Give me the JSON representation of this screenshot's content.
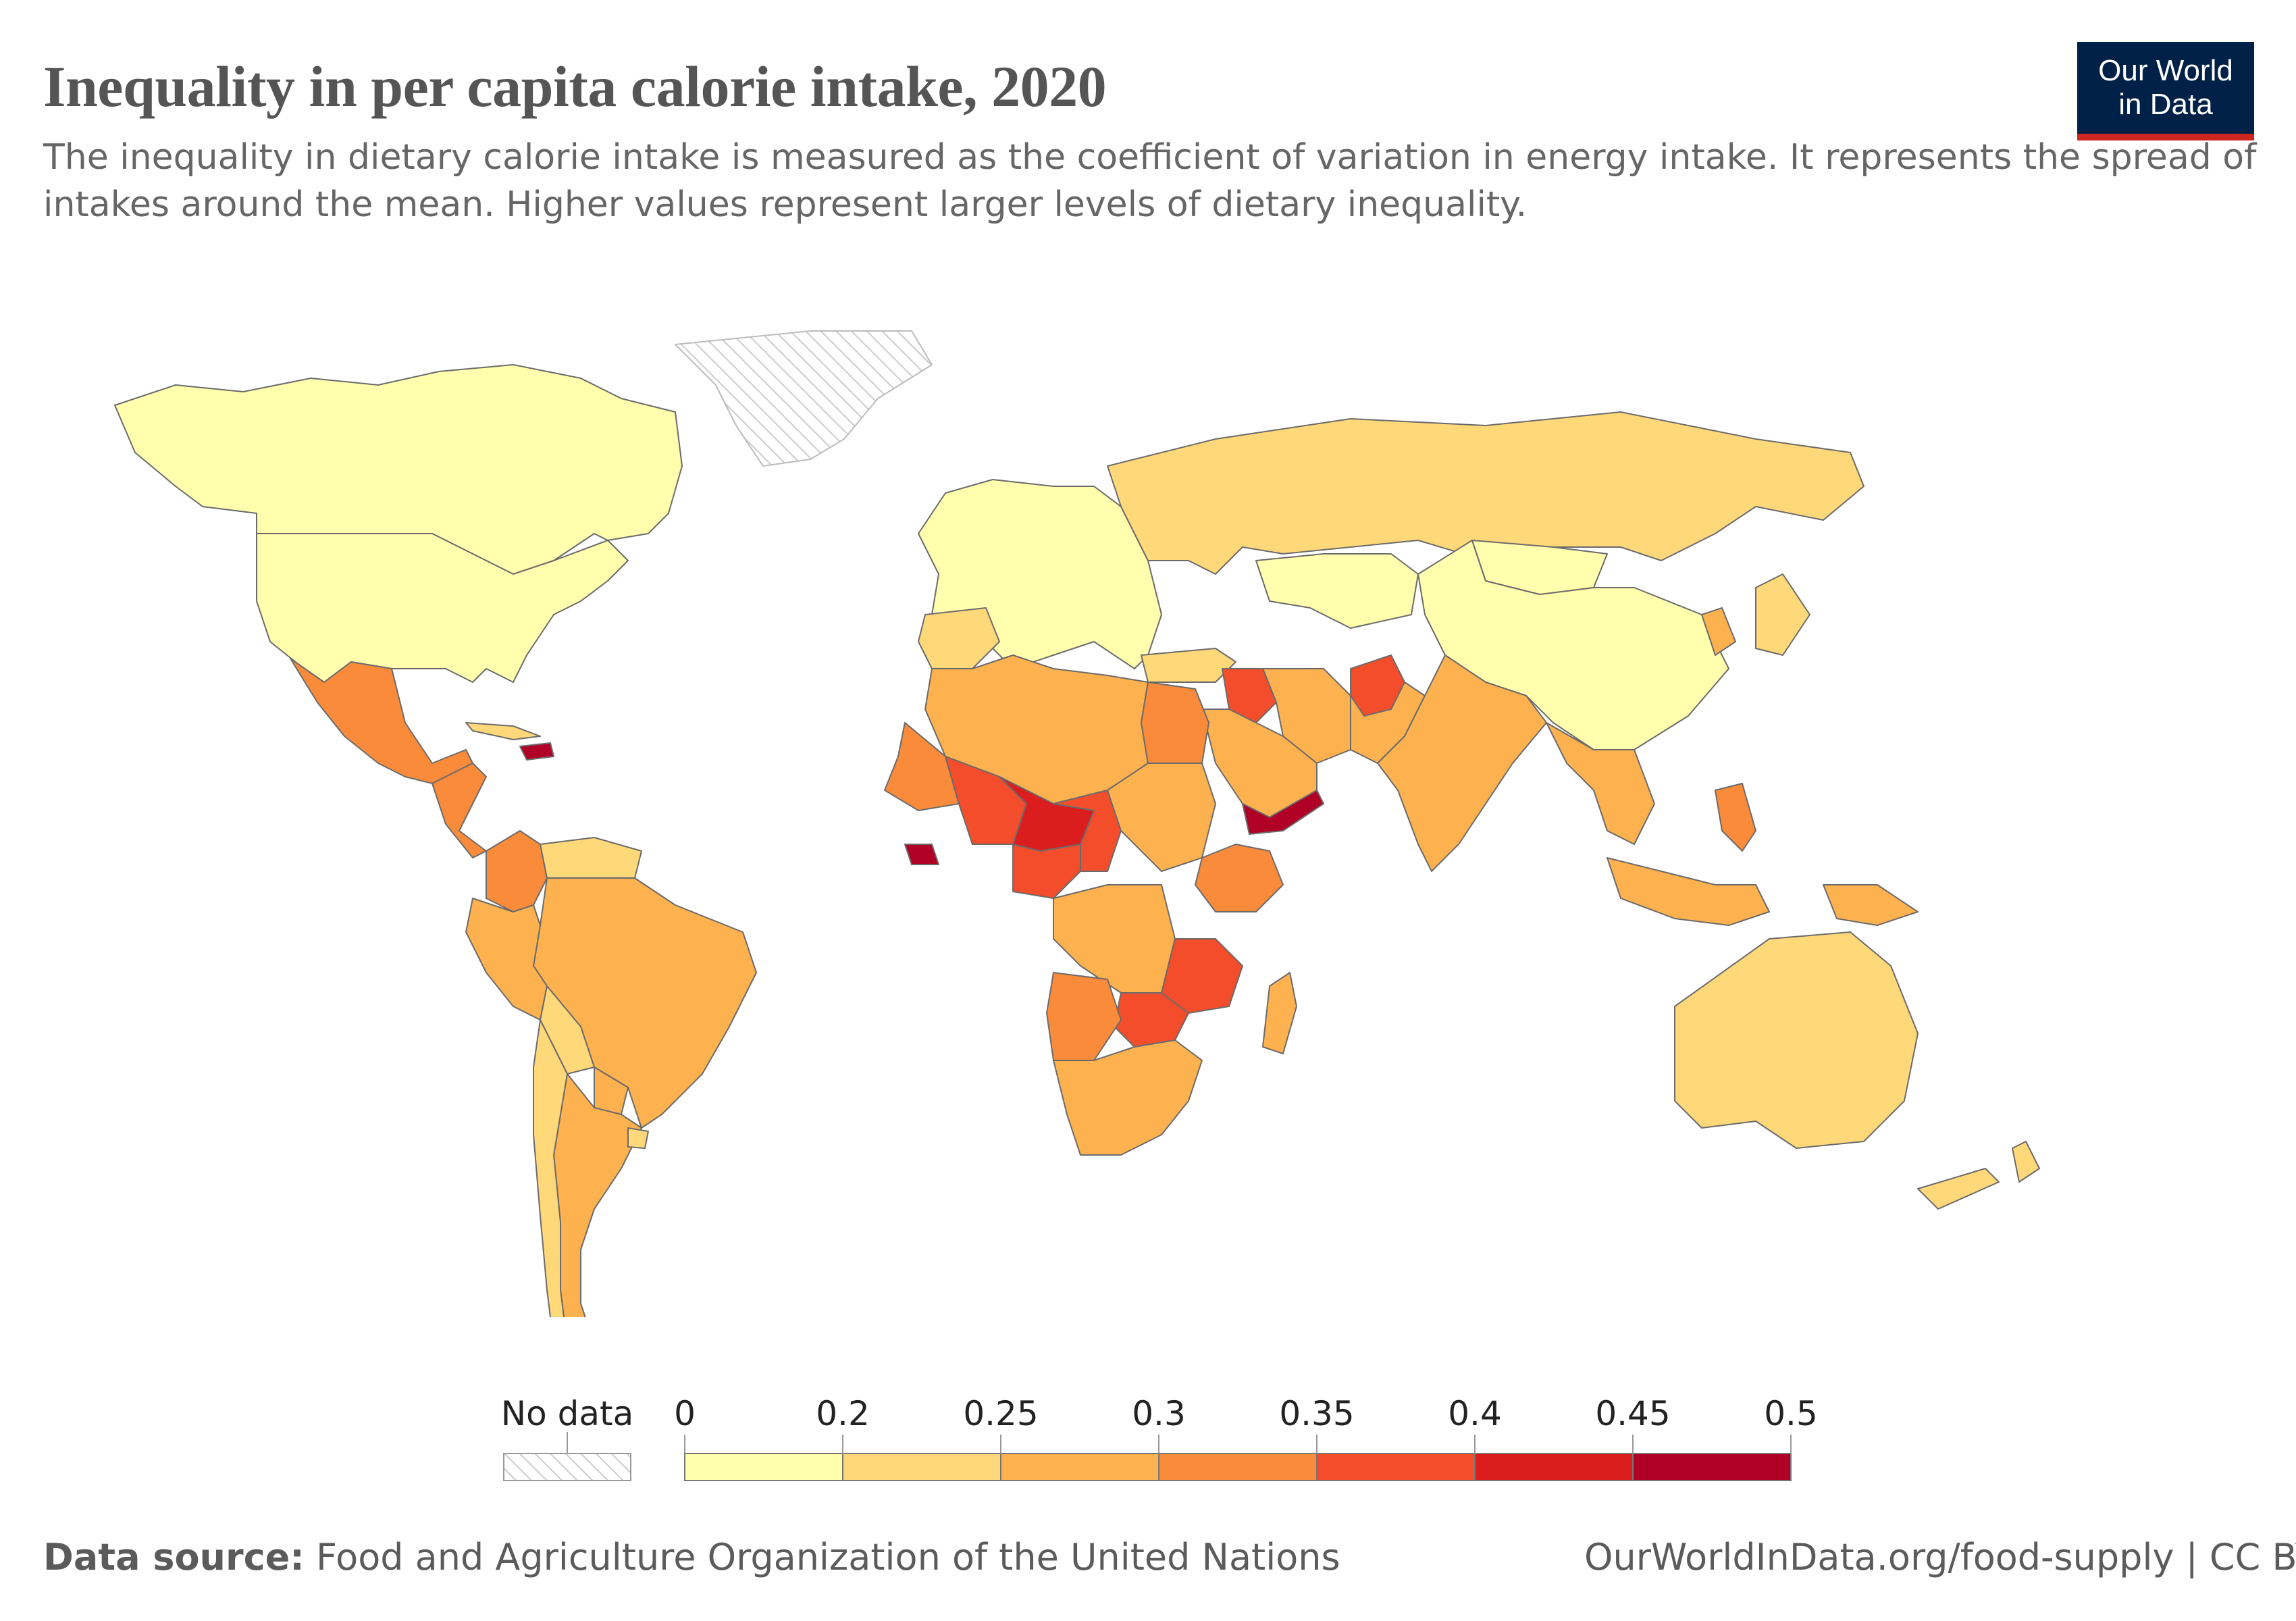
{
  "header": {
    "title": "Inequality in per capita calorie intake, 2020",
    "subtitle": "The inequality in dietary calorie intake is measured as the coefficient of variation in energy intake. It represents the spread of intakes around the mean. Higher values represent larger levels of dietary inequality."
  },
  "logo": {
    "line1": "Our World",
    "line2": "in Data"
  },
  "legend": {
    "no_data_label": "No data",
    "ticks": [
      "0",
      "0.2",
      "0.25",
      "0.3",
      "0.35",
      "0.4",
      "0.45",
      "0.5"
    ],
    "colors": [
      "#ffffad",
      "#ffd87a",
      "#fdb14f",
      "#f98b3a",
      "#f34d2b",
      "#dc1d1d",
      "#b00026"
    ],
    "no_data_color": "#cccccc"
  },
  "footer": {
    "source_label": "Data source:",
    "source_text": " Food and Agriculture Organization of the United Nations",
    "url": "OurWorldInData.org/food-supply | CC BY"
  },
  "map_data": {
    "year": 2020,
    "metric": "coefficient of variation in energy intake",
    "regions": [
      {
        "name": "Canada",
        "bin": 0
      },
      {
        "name": "United States",
        "bin": 0
      },
      {
        "name": "Greenland",
        "bin": "no_data"
      },
      {
        "name": "Mexico",
        "bin": 3
      },
      {
        "name": "Central America",
        "bin": 3
      },
      {
        "name": "Haiti",
        "bin": 6
      },
      {
        "name": "Cuba",
        "bin": 1
      },
      {
        "name": "Colombia",
        "bin": 3
      },
      {
        "name": "Venezuela",
        "bin": 1
      },
      {
        "name": "Brazil",
        "bin": 2
      },
      {
        "name": "Peru",
        "bin": 2
      },
      {
        "name": "Bolivia",
        "bin": 1
      },
      {
        "name": "Paraguay",
        "bin": 2
      },
      {
        "name": "Argentina",
        "bin": 2
      },
      {
        "name": "Chile",
        "bin": 1
      },
      {
        "name": "Uruguay",
        "bin": 1
      },
      {
        "name": "Europe",
        "bin": 0
      },
      {
        "name": "Spain",
        "bin": 1
      },
      {
        "name": "Russia",
        "bin": 1
      },
      {
        "name": "Kazakhstan",
        "bin": 0
      },
      {
        "name": "China",
        "bin": 0
      },
      {
        "name": "Mongolia",
        "bin": 0
      },
      {
        "name": "Turkey",
        "bin": 1
      },
      {
        "name": "Iran",
        "bin": 2
      },
      {
        "name": "Iraq",
        "bin": 4
      },
      {
        "name": "Afghanistan",
        "bin": 4
      },
      {
        "name": "Pakistan",
        "bin": 2
      },
      {
        "name": "India",
        "bin": 2
      },
      {
        "name": "Saudi Arabia",
        "bin": 2
      },
      {
        "name": "Yemen",
        "bin": 6
      },
      {
        "name": "Southeast Asia",
        "bin": 2
      },
      {
        "name": "Philippines",
        "bin": 3
      },
      {
        "name": "Indonesia",
        "bin": 2
      },
      {
        "name": "Papua New Guinea",
        "bin": 2
      },
      {
        "name": "Japan",
        "bin": 1
      },
      {
        "name": "Korea",
        "bin": 2
      },
      {
        "name": "Australia",
        "bin": 1
      },
      {
        "name": "New Zealand",
        "bin": 1
      },
      {
        "name": "North Africa",
        "bin": 2
      },
      {
        "name": "Egypt",
        "bin": 3
      },
      {
        "name": "Mauritania",
        "bin": 3
      },
      {
        "name": "Mali",
        "bin": 4
      },
      {
        "name": "Niger",
        "bin": 5
      },
      {
        "name": "Chad",
        "bin": 4
      },
      {
        "name": "Sudan",
        "bin": 2
      },
      {
        "name": "Nigeria",
        "bin": 4
      },
      {
        "name": "Liberia",
        "bin": 6
      },
      {
        "name": "Ethiopia",
        "bin": 3
      },
      {
        "name": "DR Congo",
        "bin": 2
      },
      {
        "name": "Tanzania",
        "bin": 4
      },
      {
        "name": "Zambia",
        "bin": 4
      },
      {
        "name": "Angola",
        "bin": 3
      },
      {
        "name": "Southern Africa",
        "bin": 2
      },
      {
        "name": "Madagascar",
        "bin": 2
      }
    ]
  }
}
